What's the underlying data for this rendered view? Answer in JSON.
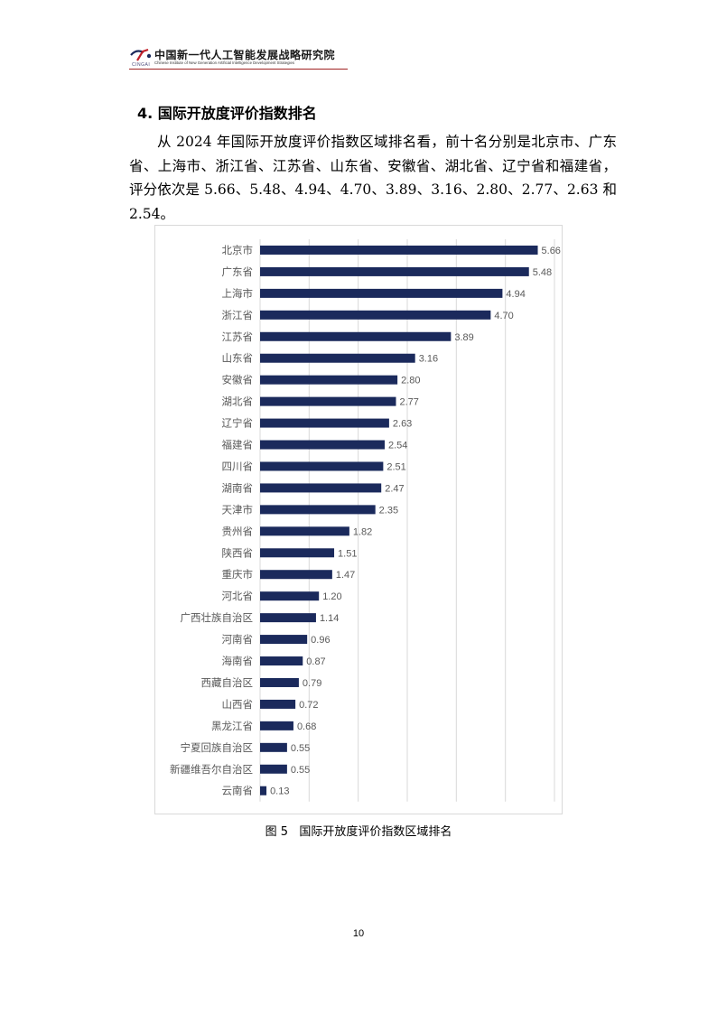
{
  "header": {
    "title_cn": "中国新一代人工智能发展战略研究院",
    "title_en": "Chinese Institute of New Generation Artificial Intelligence Development Strategies",
    "logo_text": "CINGAI"
  },
  "section": {
    "title": "4. 国际开放度评价指数排名",
    "paragraph": "从 2024 年国际开放度评价指数区域排名看，前十名分别是北京市、广东省、上海市、浙江省、江苏省、山东省、安徽省、湖北省、辽宁省和福建省，评分依次是 5.66、5.48、4.94、4.70、3.89、3.16、2.80、2.77、2.63 和 2.54。"
  },
  "chart_data": {
    "type": "bar",
    "orientation": "horizontal",
    "categories": [
      "北京市",
      "广东省",
      "上海市",
      "浙江省",
      "江苏省",
      "山东省",
      "安徽省",
      "湖北省",
      "辽宁省",
      "福建省",
      "四川省",
      "湖南省",
      "天津市",
      "贵州省",
      "陕西省",
      "重庆市",
      "河北省",
      "广西壮族自治区",
      "河南省",
      "海南省",
      "西藏自治区",
      "山西省",
      "黑龙江省",
      "宁夏回族自治区",
      "新疆维吾尔自治区",
      "云南省"
    ],
    "values": [
      5.66,
      5.48,
      4.94,
      4.7,
      3.89,
      3.16,
      2.8,
      2.77,
      2.63,
      2.54,
      2.51,
      2.47,
      2.35,
      1.82,
      1.51,
      1.47,
      1.2,
      1.14,
      0.96,
      0.87,
      0.79,
      0.72,
      0.68,
      0.55,
      0.55,
      0.13
    ],
    "value_labels": [
      "5.66",
      "5.48",
      "4.94",
      "4.70",
      "3.89",
      "3.16",
      "2.80",
      "2.77",
      "2.63",
      "2.54",
      "2.51",
      "2.47",
      "2.35",
      "1.82",
      "1.51",
      "1.47",
      "1.20",
      "1.14",
      "0.96",
      "0.87",
      "0.79",
      "0.72",
      "0.68",
      "0.55",
      "0.55",
      "0.13"
    ],
    "xlim": [
      0,
      6
    ],
    "grid": true,
    "legend": "none",
    "bar_color": "#1b2a5c",
    "grid_color": "#d9d9d9",
    "label_color": "#595959"
  },
  "caption": "图 5   国际开放度评价指数区域排名",
  "page_number": "10"
}
